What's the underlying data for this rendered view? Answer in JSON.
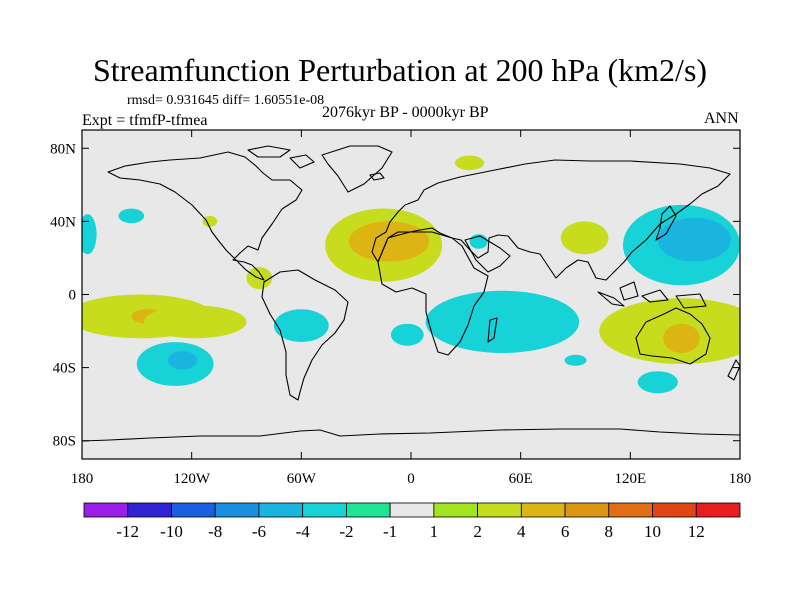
{
  "title": "Streamfunction Perturbation at 200 hPa (km2/s)",
  "stats": "rmsd= 0.931645 diff= 1.60551e-08",
  "left_label": "Expt = tfmfP-tfmea",
  "center_label": "2076kyr BP - 0000kyr BP",
  "right_label": "ANN",
  "chart_data": {
    "type": "contour-map",
    "projection": "cylindrical-equidistant",
    "xlim": [
      -180,
      180
    ],
    "ylim": [
      -90,
      90
    ],
    "x_ticks": [
      {
        "value": -180,
        "label": "180"
      },
      {
        "value": -120,
        "label": "120W"
      },
      {
        "value": -60,
        "label": "60W"
      },
      {
        "value": 0,
        "label": "0"
      },
      {
        "value": 60,
        "label": "60E"
      },
      {
        "value": 120,
        "label": "120E"
      },
      {
        "value": 180,
        "label": "180"
      }
    ],
    "y_ticks": [
      {
        "value": 80,
        "label": "80N"
      },
      {
        "value": 40,
        "label": "40N"
      },
      {
        "value": 0,
        "label": "0"
      },
      {
        "value": -40,
        "label": "40S"
      },
      {
        "value": -80,
        "label": "80S"
      }
    ],
    "colorbar": {
      "labels": [
        "-12",
        "-10",
        "-8",
        "-6",
        "-4",
        "-2",
        "-1",
        "1",
        "2",
        "4",
        "6",
        "8",
        "10",
        "12"
      ],
      "colors": [
        "#9b1fe8",
        "#3023d2",
        "#1960e0",
        "#1a8fe0",
        "#19b4e0",
        "#17d2d6",
        "#1ee496",
        "#e8e8e8",
        "#a2e41e",
        "#c8dc1e",
        "#dcb414",
        "#dc9614",
        "#e06e14",
        "#e04614",
        "#e81e1e"
      ]
    },
    "regions": [
      {
        "name": "pacific-eq-west",
        "lon": -148,
        "lat": -12,
        "rx": 40,
        "ry": 12,
        "level": "2"
      },
      {
        "name": "pacific-eq-west-core",
        "lon": -144,
        "lat": -12,
        "rx": 9,
        "ry": 4,
        "level": "4"
      },
      {
        "name": "eq-pacific-strip",
        "lon": -118,
        "lat": -15,
        "rx": 28,
        "ry": 9,
        "level": "2"
      },
      {
        "name": "south-pacific-low",
        "lon": -129,
        "lat": -38,
        "rx": 21,
        "ry": 12,
        "level": "-2"
      },
      {
        "name": "south-pacific-low-core",
        "lon": -125,
        "lat": -36,
        "rx": 8,
        "ry": 5,
        "level": "-4"
      },
      {
        "name": "south-atlantic-low",
        "lon": -60,
        "lat": -17,
        "rx": 15,
        "ry": 9,
        "level": "-2"
      },
      {
        "name": "n-atlantic-high",
        "lon": -15,
        "lat": 27,
        "rx": 32,
        "ry": 20,
        "level": "2"
      },
      {
        "name": "n-atlantic-high-core",
        "lon": -12,
        "lat": 29,
        "rx": 22,
        "ry": 11,
        "level": "4"
      },
      {
        "name": "s-atlantic-low",
        "lon": -2,
        "lat": -22,
        "rx": 9,
        "ry": 6,
        "level": "-2"
      },
      {
        "name": "indian-ocean-low",
        "lon": 50,
        "lat": -15,
        "rx": 42,
        "ry": 17,
        "level": "-2"
      },
      {
        "name": "indian-ocean-south",
        "lon": 90,
        "lat": -36,
        "rx": 6,
        "ry": 3,
        "level": "-2"
      },
      {
        "name": "arabia-low",
        "lon": 37,
        "lat": 29,
        "rx": 5,
        "ry": 4,
        "level": "-2"
      },
      {
        "name": "asia-high",
        "lon": 95,
        "lat": 31,
        "rx": 13,
        "ry": 9,
        "level": "2"
      },
      {
        "name": "nw-pacific-low",
        "lon": 148,
        "lat": 27,
        "rx": 32,
        "ry": 22,
        "level": "-2"
      },
      {
        "name": "nw-pacific-low-core",
        "lon": 155,
        "lat": 30,
        "rx": 20,
        "ry": 12,
        "level": "-4"
      },
      {
        "name": "australia-high",
        "lon": 148,
        "lat": -20,
        "rx": 45,
        "ry": 18,
        "level": "2"
      },
      {
        "name": "australia-high-core",
        "lon": 148,
        "lat": -24,
        "rx": 10,
        "ry": 8,
        "level": "4"
      },
      {
        "name": "s-indian-low",
        "lon": 135,
        "lat": -48,
        "rx": 11,
        "ry": 6,
        "level": "-2"
      },
      {
        "name": "nw-pacific-gulf-low",
        "lon": -153,
        "lat": 43,
        "rx": 7,
        "ry": 4,
        "level": "-2"
      },
      {
        "name": "ne-pacific-high",
        "lon": -110,
        "lat": 40,
        "rx": 4,
        "ry": 3,
        "level": "2"
      },
      {
        "name": "central-america-high",
        "lon": -83,
        "lat": 9,
        "rx": 7,
        "ry": 6,
        "level": "2"
      },
      {
        "name": "west-edge-low",
        "lon": -177,
        "lat": 33,
        "rx": 5,
        "ry": 11,
        "level": "-2"
      },
      {
        "name": "greenland-high",
        "lon": 32,
        "lat": 72,
        "rx": 8,
        "ry": 4,
        "level": "2"
      }
    ]
  }
}
